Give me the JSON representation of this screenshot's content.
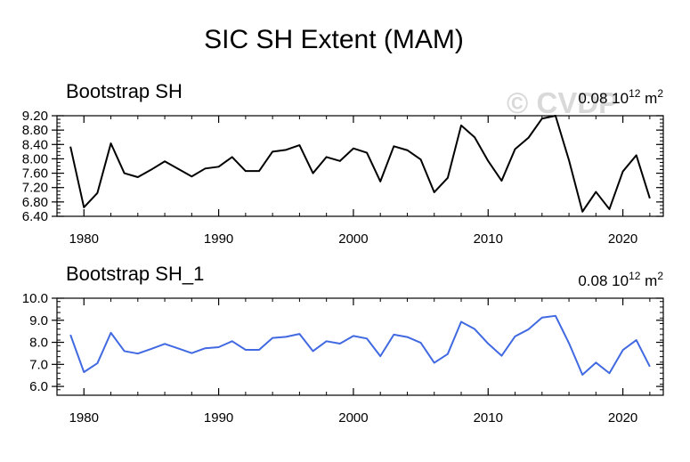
{
  "title": "SIC SH Extent (MAM)",
  "watermark": "© CVDP",
  "colors": {
    "panel1": "#000000",
    "panel2": "#4169e1",
    "watermark": "#d9d9d9"
  },
  "chart_data": [
    {
      "type": "line",
      "title": "Bootstrap SH",
      "annotation_value": "0.08",
      "annotation_unit_base": "10",
      "annotation_unit_exp": "12",
      "annotation_unit_tail": " m",
      "annotation_unit_tail_exp": "2",
      "xlim": [
        1978,
        2023
      ],
      "ylim": [
        6.4,
        9.2
      ],
      "yticks": [
        6.4,
        6.8,
        7.2,
        7.6,
        8.0,
        8.4,
        8.8,
        9.2
      ],
      "ytick_labels": [
        "6.40",
        "6.80",
        "7.20",
        "7.60",
        "8.00",
        "8.40",
        "8.80",
        "9.20"
      ],
      "xticks": [
        1980,
        1990,
        2000,
        2010,
        2020
      ],
      "xtick_labels": [
        "1980",
        "1990",
        "2000",
        "2010",
        "2020"
      ],
      "series": [
        {
          "name": "Bootstrap SH",
          "x": [
            1979,
            1980,
            1981,
            1982,
            1983,
            1984,
            1985,
            1986,
            1987,
            1988,
            1989,
            1990,
            1991,
            1992,
            1993,
            1994,
            1995,
            1996,
            1997,
            1998,
            1999,
            2000,
            2001,
            2002,
            2003,
            2004,
            2005,
            2006,
            2007,
            2008,
            2009,
            2010,
            2011,
            2012,
            2013,
            2014,
            2015,
            2016,
            2017,
            2018,
            2019,
            2020,
            2021,
            2022
          ],
          "values": [
            8.34,
            6.65,
            7.05,
            8.43,
            7.6,
            7.49,
            7.7,
            7.93,
            7.72,
            7.51,
            7.73,
            7.78,
            8.05,
            7.66,
            7.66,
            8.2,
            8.25,
            8.38,
            7.6,
            8.05,
            7.94,
            8.29,
            8.17,
            7.37,
            8.35,
            8.24,
            7.98,
            7.07,
            7.47,
            8.93,
            8.6,
            7.94,
            7.39,
            8.27,
            8.59,
            9.12,
            9.2,
            7.96,
            6.53,
            7.08,
            6.6,
            7.65,
            8.1,
            6.9
          ],
          "color": "#000000"
        }
      ]
    },
    {
      "type": "line",
      "title": "Bootstrap SH_1",
      "annotation_value": "0.08",
      "annotation_unit_base": "10",
      "annotation_unit_exp": "12",
      "annotation_unit_tail": " m",
      "annotation_unit_tail_exp": "2",
      "xlim": [
        1978,
        2023
      ],
      "ylim": [
        5.6,
        10.0
      ],
      "yticks": [
        6.0,
        7.0,
        8.0,
        9.0,
        10.0
      ],
      "ytick_labels": [
        "6.0",
        "7.0",
        "8.0",
        "9.0",
        "10.0"
      ],
      "xticks": [
        1980,
        1990,
        2000,
        2010,
        2020
      ],
      "xtick_labels": [
        "1980",
        "1990",
        "2000",
        "2010",
        "2020"
      ],
      "series": [
        {
          "name": "Bootstrap SH_1",
          "x": [
            1979,
            1980,
            1981,
            1982,
            1983,
            1984,
            1985,
            1986,
            1987,
            1988,
            1989,
            1990,
            1991,
            1992,
            1993,
            1994,
            1995,
            1996,
            1997,
            1998,
            1999,
            2000,
            2001,
            2002,
            2003,
            2004,
            2005,
            2006,
            2007,
            2008,
            2009,
            2010,
            2011,
            2012,
            2013,
            2014,
            2015,
            2016,
            2017,
            2018,
            2019,
            2020,
            2021,
            2022
          ],
          "values": [
            8.34,
            6.65,
            7.05,
            8.43,
            7.6,
            7.49,
            7.7,
            7.93,
            7.72,
            7.51,
            7.73,
            7.78,
            8.05,
            7.66,
            7.66,
            8.2,
            8.25,
            8.38,
            7.6,
            8.05,
            7.94,
            8.29,
            8.17,
            7.37,
            8.35,
            8.24,
            7.98,
            7.07,
            7.47,
            8.93,
            8.6,
            7.94,
            7.39,
            8.27,
            8.59,
            9.12,
            9.2,
            7.96,
            6.53,
            7.08,
            6.6,
            7.65,
            8.1,
            6.9
          ],
          "color": "#4169e1"
        }
      ]
    }
  ]
}
